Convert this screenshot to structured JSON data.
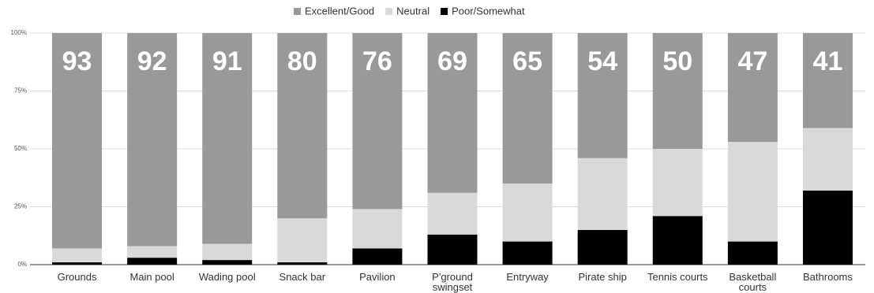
{
  "chart_data": {
    "type": "stacked_bar_100",
    "categories": [
      "Grounds",
      "Main pool",
      "Wading pool",
      "Snack bar",
      "Pavilion",
      "P'ground swingset",
      "Entryway",
      "Pirate ship",
      "Tennis courts",
      "Basketball courts",
      "Bathrooms"
    ],
    "series": [
      {
        "name": "Excellent/Good",
        "color": "#999999",
        "values": [
          93,
          92,
          91,
          80,
          76,
          69,
          65,
          54,
          50,
          47,
          41
        ]
      },
      {
        "name": "Neutral",
        "color": "#d9d9d9",
        "values": [
          6,
          5,
          7,
          19,
          17,
          18,
          25,
          31,
          29,
          43,
          27
        ]
      },
      {
        "name": "Poor/Somewhat",
        "color": "#000000",
        "values": [
          1,
          3,
          2,
          1,
          7,
          13,
          10,
          15,
          21,
          10,
          32
        ]
      }
    ],
    "ylim": [
      0,
      100
    ],
    "yticks": [
      {
        "value": 0,
        "label": "0%"
      },
      {
        "value": 25,
        "label": "25%"
      },
      {
        "value": 50,
        "label": "50%"
      },
      {
        "value": 75,
        "label": "75%"
      },
      {
        "value": 100,
        "label": "100%"
      }
    ],
    "grid": true,
    "legend": "top"
  }
}
